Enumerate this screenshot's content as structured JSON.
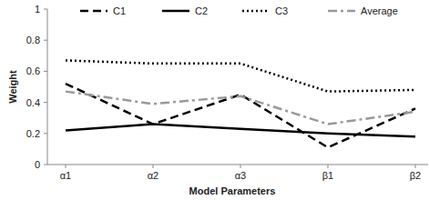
{
  "chart_data": {
    "type": "line",
    "x_label": "Model Parameters",
    "y_label": "Weight",
    "categories": [
      "α1",
      "α2",
      "α3",
      "β1",
      "β2"
    ],
    "series": [
      {
        "name": "C1",
        "color": "#000000",
        "line_style": "dashed",
        "values": [
          0.52,
          0.26,
          0.45,
          0.11,
          0.36
        ]
      },
      {
        "name": "C2",
        "color": "#000000",
        "line_style": "solid",
        "values": [
          0.22,
          0.26,
          0.23,
          0.2,
          0.18
        ]
      },
      {
        "name": "C3",
        "color": "#000000",
        "line_style": "dotted",
        "values": [
          0.67,
          0.65,
          0.65,
          0.47,
          0.48
        ]
      },
      {
        "name": "Average",
        "color": "#999999",
        "line_style": "dashdot",
        "values": [
          0.47,
          0.39,
          0.44,
          0.26,
          0.34
        ]
      }
    ],
    "ylim": [
      0,
      1
    ],
    "yticks": [
      0,
      0.2,
      0.4,
      0.6,
      0.8,
      1
    ],
    "grid": false,
    "legend": "top"
  }
}
